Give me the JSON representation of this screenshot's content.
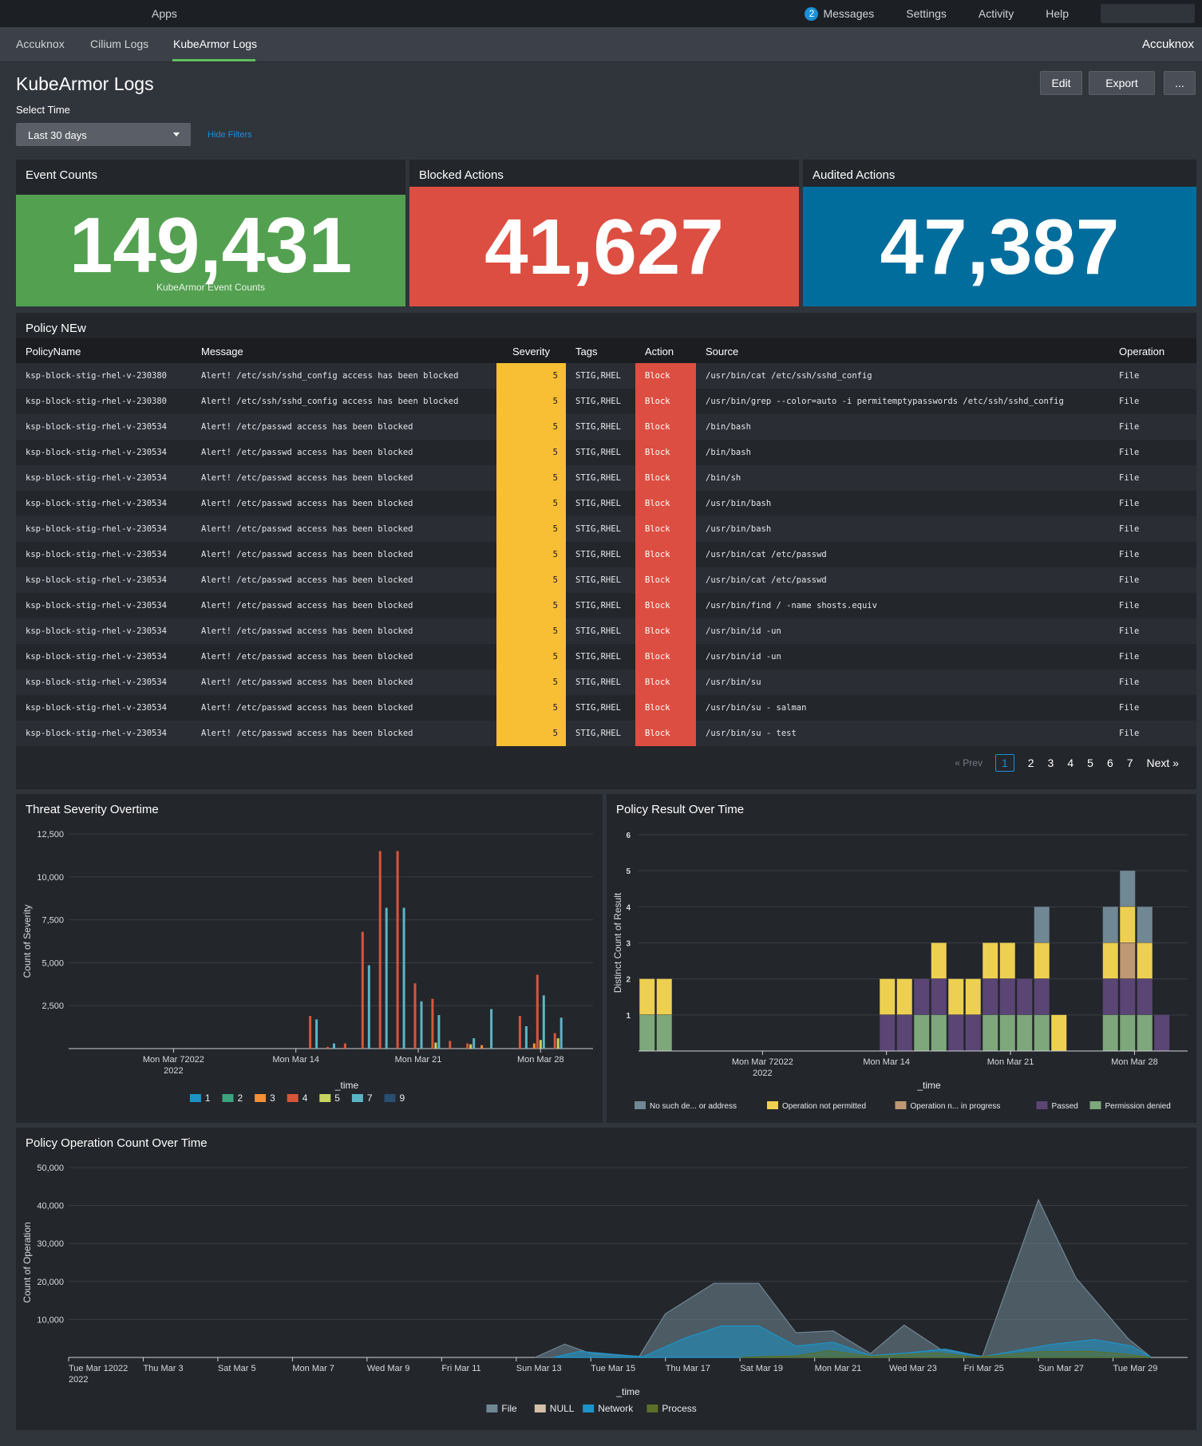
{
  "topbar": {
    "apps": "Apps",
    "messages_count": "2",
    "messages": "Messages",
    "settings": "Settings",
    "activity": "Activity",
    "help": "Help"
  },
  "nav": {
    "tabs": [
      "Accuknox",
      "Cilium Logs",
      "KubeArmor Logs"
    ],
    "active": "KubeArmor Logs",
    "brand": "Accuknox"
  },
  "page": {
    "title": "KubeArmor Logs",
    "edit": "Edit",
    "export": "Export",
    "more": "...",
    "select_time_label": "Select Time",
    "time_value": "Last 30 days",
    "hide_filters": "Hide Filters"
  },
  "kpis": [
    {
      "title": "Event Counts",
      "value": "149,431",
      "sub": "KubeArmor Event Counts",
      "color": "#53a051"
    },
    {
      "title": "Blocked Actions",
      "value": "41,627",
      "sub": "",
      "color": "#dc4e41"
    },
    {
      "title": "Audited Actions",
      "value": "47,387",
      "sub": "",
      "color": "#006d9c"
    }
  ],
  "policy_table": {
    "title": "Policy NEw",
    "columns": [
      "PolicyName",
      "Message",
      "Severity",
      "Tags",
      "Action",
      "Source",
      "Operation"
    ],
    "rows": [
      [
        "ksp-block-stig-rhel-v-230380",
        "Alert! /etc/ssh/sshd_config access has been blocked",
        "5",
        "STIG,RHEL",
        "Block",
        "/usr/bin/cat /etc/ssh/sshd_config",
        "File"
      ],
      [
        "ksp-block-stig-rhel-v-230380",
        "Alert! /etc/ssh/sshd_config access has been blocked",
        "5",
        "STIG,RHEL",
        "Block",
        "/usr/bin/grep --color=auto -i permitemptypasswords /etc/ssh/sshd_config",
        "File"
      ],
      [
        "ksp-block-stig-rhel-v-230534",
        "Alert! /etc/passwd access has been blocked",
        "5",
        "STIG,RHEL",
        "Block",
        "/bin/bash",
        "File"
      ],
      [
        "ksp-block-stig-rhel-v-230534",
        "Alert! /etc/passwd access has been blocked",
        "5",
        "STIG,RHEL",
        "Block",
        "/bin/bash",
        "File"
      ],
      [
        "ksp-block-stig-rhel-v-230534",
        "Alert! /etc/passwd access has been blocked",
        "5",
        "STIG,RHEL",
        "Block",
        "/bin/sh",
        "File"
      ],
      [
        "ksp-block-stig-rhel-v-230534",
        "Alert! /etc/passwd access has been blocked",
        "5",
        "STIG,RHEL",
        "Block",
        "/usr/bin/bash",
        "File"
      ],
      [
        "ksp-block-stig-rhel-v-230534",
        "Alert! /etc/passwd access has been blocked",
        "5",
        "STIG,RHEL",
        "Block",
        "/usr/bin/bash",
        "File"
      ],
      [
        "ksp-block-stig-rhel-v-230534",
        "Alert! /etc/passwd access has been blocked",
        "5",
        "STIG,RHEL",
        "Block",
        "/usr/bin/cat /etc/passwd",
        "File"
      ],
      [
        "ksp-block-stig-rhel-v-230534",
        "Alert! /etc/passwd access has been blocked",
        "5",
        "STIG,RHEL",
        "Block",
        "/usr/bin/cat /etc/passwd",
        "File"
      ],
      [
        "ksp-block-stig-rhel-v-230534",
        "Alert! /etc/passwd access has been blocked",
        "5",
        "STIG,RHEL",
        "Block",
        "/usr/bin/find / -name shosts.equiv",
        "File"
      ],
      [
        "ksp-block-stig-rhel-v-230534",
        "Alert! /etc/passwd access has been blocked",
        "5",
        "STIG,RHEL",
        "Block",
        "/usr/bin/id -un",
        "File"
      ],
      [
        "ksp-block-stig-rhel-v-230534",
        "Alert! /etc/passwd access has been blocked",
        "5",
        "STIG,RHEL",
        "Block",
        "/usr/bin/id -un",
        "File"
      ],
      [
        "ksp-block-stig-rhel-v-230534",
        "Alert! /etc/passwd access has been blocked",
        "5",
        "STIG,RHEL",
        "Block",
        "/usr/bin/su",
        "File"
      ],
      [
        "ksp-block-stig-rhel-v-230534",
        "Alert! /etc/passwd access has been blocked",
        "5",
        "STIG,RHEL",
        "Block",
        "/usr/bin/su - salman",
        "File"
      ],
      [
        "ksp-block-stig-rhel-v-230534",
        "Alert! /etc/passwd access has been blocked",
        "5",
        "STIG,RHEL",
        "Block",
        "/usr/bin/su - test",
        "File"
      ]
    ],
    "pager": {
      "prev": "« Prev",
      "pages": [
        "1",
        "2",
        "3",
        "4",
        "5",
        "6",
        "7"
      ],
      "current": "1",
      "next": "Next »"
    }
  },
  "chart_data": [
    {
      "title": "Threat Severity Overtime",
      "type": "bar",
      "xlabel": "_time",
      "ylabel": "Count of Severity",
      "ylim": [
        0,
        12500
      ],
      "yticks": [
        2500,
        5000,
        7500,
        10000,
        12500
      ],
      "ytick_labels": [
        "2,500",
        "5,000",
        "7,500",
        "10,000",
        "12,500"
      ],
      "x_tick_labels": [
        {
          "day": 7,
          "label": "Mon Mar 72022",
          "sub": "2022"
        },
        {
          "day": 14,
          "label": "Mon Mar 14",
          "sub": ""
        },
        {
          "day": 21,
          "label": "Mon Mar 21",
          "sub": ""
        },
        {
          "day": 28,
          "label": "Mon Mar 28",
          "sub": ""
        }
      ],
      "x_range_days": [
        1,
        31
      ],
      "legend": "bottom",
      "series": [
        {
          "name": "1",
          "color": "#1e93c6",
          "points": []
        },
        {
          "name": "2",
          "color": "#3ca37f",
          "points": []
        },
        {
          "name": "3",
          "color": "#f58f39",
          "points": [
            [
              25,
              200
            ],
            [
              28,
              300
            ]
          ]
        },
        {
          "name": "4",
          "color": "#d6563c",
          "points": [
            [
              15,
              1900
            ],
            [
              16,
              100
            ],
            [
              17,
              300
            ],
            [
              18,
              6800
            ],
            [
              19,
              11500
            ],
            [
              20,
              11500
            ],
            [
              21,
              3800
            ],
            [
              22,
              2900
            ],
            [
              23,
              450
            ],
            [
              24,
              300
            ],
            [
              27,
              1900
            ],
            [
              28,
              4300
            ],
            [
              29,
              900
            ]
          ]
        },
        {
          "name": "5",
          "color": "#c6d55e",
          "points": [
            [
              22,
              350
            ],
            [
              24,
              250
            ],
            [
              28,
              500
            ],
            [
              29,
              600
            ]
          ]
        },
        {
          "name": "7",
          "color": "#5bb5c4",
          "points": [
            [
              15,
              1700
            ],
            [
              16,
              300
            ],
            [
              18,
              4850
            ],
            [
              19,
              8200
            ],
            [
              20,
              8200
            ],
            [
              21,
              2750
            ],
            [
              22,
              1950
            ],
            [
              24,
              600
            ],
            [
              25,
              2300
            ],
            [
              27,
              1300
            ],
            [
              28,
              3100
            ],
            [
              29,
              1800
            ]
          ]
        },
        {
          "name": "9",
          "color": "#294e70",
          "points": []
        }
      ]
    },
    {
      "title": "Policy Result Over Time",
      "type": "bar",
      "stacked": true,
      "xlabel": "_time",
      "ylabel": "Distinct Count of Result",
      "ylim": [
        0,
        6
      ],
      "yticks": [
        1,
        2,
        3,
        4,
        5,
        6
      ],
      "x_tick_labels": [
        {
          "day": 7,
          "label": "Mon Mar 72022",
          "sub": "2022"
        },
        {
          "day": 14,
          "label": "Mon Mar 14",
          "sub": ""
        },
        {
          "day": 21,
          "label": "Mon Mar 21",
          "sub": ""
        },
        {
          "day": 28,
          "label": "Mon Mar 28",
          "sub": ""
        }
      ],
      "x_range_days": [
        0,
        31
      ],
      "legend": "bottom",
      "series": [
        {
          "name": "No such de... or address",
          "color": "#708794"
        },
        {
          "name": "Operation not permitted",
          "color": "#edd051"
        },
        {
          "name": "Operation n... in progress",
          "color": "#bd9872"
        },
        {
          "name": "Passed",
          "color": "#5a4575"
        },
        {
          "name": "Permission denied",
          "color": "#7ea77b"
        }
      ],
      "bars": [
        {
          "day": 0,
          "stack": [
            "Permission denied",
            "Operation not permitted"
          ]
        },
        {
          "day": 1,
          "stack": [
            "Permission denied",
            "Operation not permitted"
          ]
        },
        {
          "day": 14,
          "stack": [
            "Passed",
            "Operation not permitted"
          ]
        },
        {
          "day": 15,
          "stack": [
            "Passed",
            "Operation not permitted"
          ]
        },
        {
          "day": 16,
          "stack": [
            "Permission denied",
            "Passed"
          ]
        },
        {
          "day": 17,
          "stack": [
            "Permission denied",
            "Passed",
            "Operation not permitted"
          ]
        },
        {
          "day": 18,
          "stack": [
            "Passed",
            "Operation not permitted"
          ]
        },
        {
          "day": 19,
          "stack": [
            "Passed",
            "Operation not permitted"
          ]
        },
        {
          "day": 20,
          "stack": [
            "Permission denied",
            "Passed",
            "Operation not permitted"
          ]
        },
        {
          "day": 21,
          "stack": [
            "Permission denied",
            "Passed",
            "Operation not permitted"
          ]
        },
        {
          "day": 22,
          "stack": [
            "Permission denied",
            "Passed"
          ]
        },
        {
          "day": 23,
          "stack": [
            "Permission denied",
            "Passed",
            "Operation not permitted",
            "No such de... or address"
          ]
        },
        {
          "day": 24,
          "stack": [
            "Operation not permitted"
          ]
        },
        {
          "day": 27,
          "stack": [
            "Permission denied",
            "Passed",
            "Operation not permitted",
            "No such de... or address"
          ]
        },
        {
          "day": 28,
          "stack": [
            "Permission denied",
            "Passed",
            "Operation n... in progress",
            "Operation not permitted",
            "No such de... or address"
          ]
        },
        {
          "day": 29,
          "stack": [
            "Permission denied",
            "Passed",
            "Operation not permitted",
            "No such de... or address"
          ]
        },
        {
          "day": 30,
          "stack": [
            "Passed"
          ]
        }
      ]
    },
    {
      "title": "Policy Operation Count Over Time",
      "type": "area",
      "xlabel": "_time",
      "ylabel": "Count of Operation",
      "ylim": [
        0,
        50000
      ],
      "yticks": [
        10000,
        20000,
        30000,
        40000,
        50000
      ],
      "ytick_labels": [
        "10,000",
        "20,000",
        "30,000",
        "40,000",
        "50,000"
      ],
      "x_tick_labels": [
        {
          "day": 1,
          "label": "Tue Mar 12022",
          "sub": "2022"
        },
        {
          "day": 3,
          "label": "Thu Mar 3",
          "sub": ""
        },
        {
          "day": 5,
          "label": "Sat Mar 5",
          "sub": ""
        },
        {
          "day": 7,
          "label": "Mon Mar 7",
          "sub": ""
        },
        {
          "day": 9,
          "label": "Wed Mar 9",
          "sub": ""
        },
        {
          "day": 11,
          "label": "Fri Mar 11",
          "sub": ""
        },
        {
          "day": 13,
          "label": "Sun Mar 13",
          "sub": ""
        },
        {
          "day": 15,
          "label": "Tue Mar 15",
          "sub": ""
        },
        {
          "day": 17,
          "label": "Thu Mar 17",
          "sub": ""
        },
        {
          "day": 19,
          "label": "Sat Mar 19",
          "sub": ""
        },
        {
          "day": 21,
          "label": "Mon Mar 21",
          "sub": ""
        },
        {
          "day": 23,
          "label": "Wed Mar 23",
          "sub": ""
        },
        {
          "day": 25,
          "label": "Fri Mar 25",
          "sub": ""
        },
        {
          "day": 27,
          "label": "Sun Mar 27",
          "sub": ""
        },
        {
          "day": 29,
          "label": "Tue Mar 29",
          "sub": ""
        }
      ],
      "x_range_days": [
        1,
        31
      ],
      "legend": "bottom",
      "series": [
        {
          "name": "File",
          "color": "#708794",
          "points": [
            [
              13.5,
              0
            ],
            [
              14.3,
              3500
            ],
            [
              15,
              1000
            ],
            [
              16.3,
              300
            ],
            [
              17,
              11500
            ],
            [
              18.3,
              19500
            ],
            [
              19.5,
              19500
            ],
            [
              20.5,
              6500
            ],
            [
              21.5,
              7000
            ],
            [
              22.5,
              1000
            ],
            [
              23.4,
              8500
            ],
            [
              24.4,
              2000
            ],
            [
              25.5,
              300
            ],
            [
              27,
              41500
            ],
            [
              28,
              21000
            ],
            [
              29.4,
              5000
            ],
            [
              30,
              200
            ]
          ]
        },
        {
          "name": "NULL",
          "color": "#d4bfa8",
          "points": []
        },
        {
          "name": "Network",
          "color": "#1e93c6",
          "points": [
            [
              14,
              0
            ],
            [
              14.7,
              1600
            ],
            [
              15.5,
              900
            ],
            [
              16.4,
              200
            ],
            [
              17.5,
              5000
            ],
            [
              18.5,
              8300
            ],
            [
              19.5,
              8300
            ],
            [
              20.5,
              3000
            ],
            [
              21.5,
              4000
            ],
            [
              22.5,
              500
            ],
            [
              23.5,
              1200
            ],
            [
              24.5,
              2200
            ],
            [
              25.5,
              200
            ],
            [
              27.4,
              3500
            ],
            [
              28.5,
              4700
            ],
            [
              29.5,
              3000
            ],
            [
              30,
              200
            ]
          ]
        },
        {
          "name": "Process",
          "color": "#5b6f2a",
          "points": [
            [
              19,
              0
            ],
            [
              20.5,
              400
            ],
            [
              21.4,
              1800
            ],
            [
              22.5,
              300
            ],
            [
              24.3,
              1200
            ],
            [
              25.3,
              0
            ],
            [
              27,
              1500
            ],
            [
              28.4,
              1600
            ],
            [
              29.3,
              900
            ],
            [
              30,
              0
            ]
          ]
        }
      ]
    }
  ]
}
